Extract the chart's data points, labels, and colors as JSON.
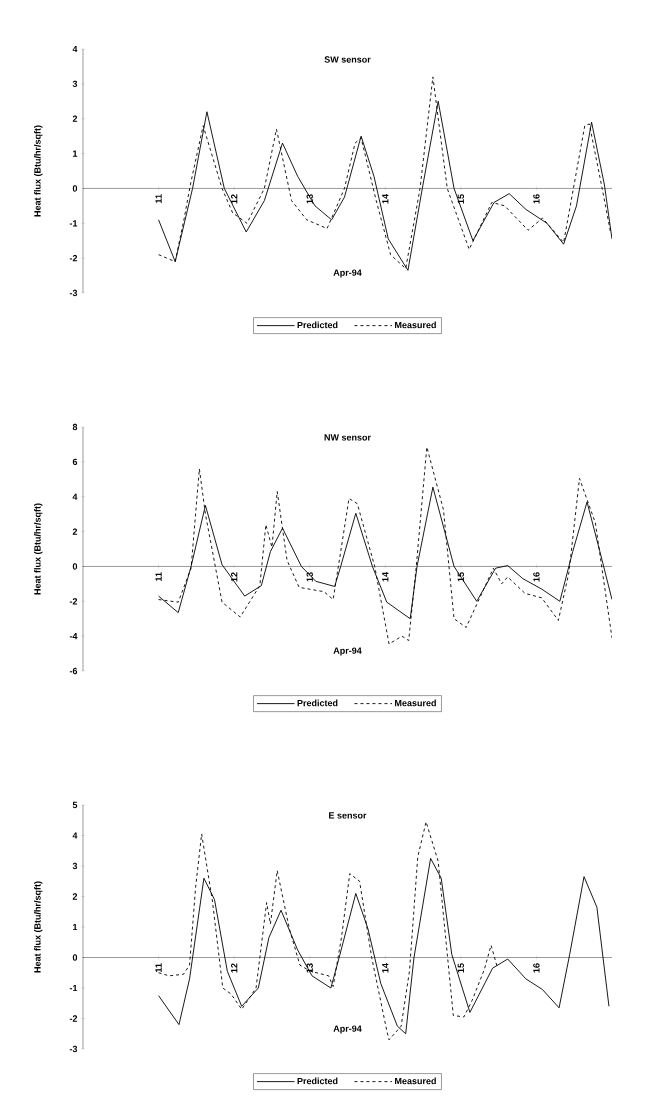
{
  "chart_data": [
    {
      "type": "line",
      "title": "SW sensor",
      "xlabel": "Apr-94",
      "ylabel": "Heat flux (Btu/hr/sqft)",
      "xlim": [
        10,
        17
      ],
      "xticks": [
        11,
        12,
        13,
        14,
        15,
        16
      ],
      "ylim": [
        -3,
        4
      ],
      "yticks": [
        -3,
        -2,
        -1,
        0,
        1,
        2,
        3,
        4
      ],
      "grid": false,
      "legend": "bottom",
      "series": [
        {
          "name": "Predicted",
          "color": "#000000",
          "line_style": "solid",
          "x": [
            11.0,
            11.22,
            11.45,
            11.64,
            11.87,
            12.16,
            12.4,
            12.64,
            12.84,
            13.07,
            13.29,
            13.46,
            13.68,
            13.85,
            14.04,
            14.3,
            14.49,
            14.7,
            14.91,
            15.16,
            15.44,
            15.64,
            15.86,
            16.14,
            16.36,
            16.53,
            16.73,
            16.9,
            17.0
          ],
          "values": [
            -0.9,
            -2.1,
            0,
            2.2,
            0,
            -1.25,
            -0.35,
            1.3,
            0.35,
            -0.5,
            -0.9,
            -0.25,
            1.5,
            0.35,
            -1.45,
            -2.35,
            0,
            2.5,
            0,
            -1.5,
            -0.4,
            -0.15,
            -0.6,
            -1.0,
            -1.6,
            -0.5,
            1.9,
            0.1,
            -1.45
          ]
        },
        {
          "name": "Measured",
          "color": "#000000",
          "line_style": "dashed",
          "x": [
            11.0,
            11.22,
            11.34,
            11.42,
            11.59,
            11.84,
            11.98,
            12.17,
            12.4,
            12.56,
            12.76,
            12.96,
            13.23,
            13.46,
            13.6,
            13.68,
            13.88,
            14.07,
            14.27,
            14.46,
            14.63,
            14.82,
            15.11,
            15.41,
            15.58,
            15.89,
            16.08,
            16.36,
            16.64,
            16.7,
            16.87,
            16.98
          ],
          "values": [
            -1.9,
            -2.1,
            -0.85,
            0.1,
            1.8,
            0,
            -0.7,
            -1.0,
            0,
            1.7,
            -0.35,
            -0.9,
            -1.15,
            0,
            1.3,
            1.45,
            -0.35,
            -1.9,
            -2.3,
            0,
            3.2,
            0,
            -1.75,
            -0.4,
            -0.5,
            -1.2,
            -0.85,
            -1.55,
            1.8,
            1.85,
            0,
            -1.25
          ]
        }
      ]
    },
    {
      "type": "line",
      "title": "NW sensor",
      "xlabel": "Apr-94",
      "ylabel": "Heat flux (Btu/hr/sqft)",
      "xlim": [
        10,
        17
      ],
      "xticks": [
        11,
        12,
        13,
        14,
        15,
        16
      ],
      "ylim": [
        -6,
        8
      ],
      "yticks": [
        -6,
        -4,
        -2,
        0,
        2,
        4,
        6,
        8
      ],
      "grid": false,
      "legend": "bottom",
      "series": [
        {
          "name": "Predicted",
          "color": "#000000",
          "line_style": "solid",
          "x": [
            11.0,
            11.26,
            11.43,
            11.62,
            11.84,
            12.14,
            12.36,
            12.48,
            12.64,
            12.89,
            13.08,
            13.33,
            13.41,
            13.61,
            13.83,
            14.02,
            14.33,
            14.42,
            14.63,
            14.91,
            15.21,
            15.46,
            15.62,
            15.82,
            16.07,
            16.31,
            16.48,
            16.67,
            16.84,
            17.0
          ],
          "values": [
            -1.7,
            -2.65,
            0,
            3.5,
            0.1,
            -1.7,
            -1.1,
            0.85,
            2.2,
            0,
            -0.85,
            -1.15,
            0,
            3.05,
            0,
            -2.05,
            -3.0,
            0,
            4.55,
            0,
            -2.0,
            -0.1,
            0.05,
            -0.7,
            -1.3,
            -2.0,
            0.85,
            3.7,
            0.85,
            -1.9
          ]
        },
        {
          "name": "Measured",
          "color": "#000000",
          "line_style": "dashed",
          "x": [
            11.0,
            11.26,
            11.43,
            11.54,
            11.62,
            11.84,
            12.08,
            12.34,
            12.42,
            12.5,
            12.57,
            12.7,
            12.86,
            13.19,
            13.31,
            13.41,
            13.52,
            13.63,
            13.86,
            14.05,
            14.22,
            14.31,
            14.41,
            14.55,
            14.77,
            14.91,
            15.07,
            15.24,
            15.43,
            15.54,
            15.62,
            15.85,
            16.07,
            16.29,
            16.43,
            16.57,
            16.78,
            17.0
          ],
          "values": [
            -1.9,
            -2.05,
            -0.1,
            5.6,
            3.0,
            -2.05,
            -2.9,
            -1.1,
            2.4,
            1.1,
            4.3,
            0.35,
            -1.2,
            -1.45,
            -1.9,
            0.85,
            3.9,
            3.6,
            0,
            -4.45,
            -4.0,
            -4.25,
            0,
            6.85,
            3.25,
            -3.0,
            -3.5,
            -1.9,
            -0.1,
            -1.0,
            -0.6,
            -1.55,
            -1.8,
            -3.1,
            -0.35,
            5.05,
            2.5,
            -4.1
          ]
        }
      ]
    },
    {
      "type": "line",
      "title": "E sensor",
      "xlabel": "Apr-94",
      "ylabel": "Heat flux (Btu/hr/sqft)",
      "xlim": [
        10,
        17
      ],
      "xticks": [
        11,
        12,
        13,
        14,
        15,
        16
      ],
      "ylim": [
        -3,
        5
      ],
      "yticks": [
        -3,
        -2,
        -1,
        0,
        1,
        2,
        3,
        4,
        5
      ],
      "grid": false,
      "legend": "bottom",
      "series": [
        {
          "name": "Predicted",
          "color": "#000000",
          "line_style": "solid",
          "x": [
            11.0,
            11.27,
            11.41,
            11.6,
            11.74,
            11.91,
            12.1,
            12.32,
            12.46,
            12.62,
            12.84,
            13.03,
            13.28,
            13.39,
            13.61,
            13.77,
            13.94,
            14.16,
            14.27,
            14.38,
            14.6,
            14.74,
            14.88,
            15.12,
            15.42,
            15.62,
            15.86,
            16.08,
            16.3,
            16.44,
            16.63,
            16.8,
            16.96
          ],
          "values": [
            -1.25,
            -2.2,
            -0.7,
            2.6,
            1.9,
            -0.45,
            -1.6,
            -1.0,
            0.65,
            1.55,
            0.25,
            -0.6,
            -1.0,
            0,
            2.1,
            0.95,
            -0.85,
            -2.25,
            -2.5,
            0,
            3.25,
            2.6,
            0.1,
            -1.8,
            -0.35,
            -0.05,
            -0.7,
            -1.05,
            -1.65,
            0.1,
            2.65,
            1.65,
            -1.6
          ]
        },
        {
          "name": "Measured",
          "color": "#000000",
          "line_style": "dashed",
          "x": [
            11.0,
            11.14,
            11.33,
            11.41,
            11.49,
            11.57,
            11.71,
            11.85,
            11.96,
            12.1,
            12.29,
            12.43,
            12.48,
            12.57,
            12.73,
            12.87,
            13.01,
            13.25,
            13.31,
            13.42,
            13.53,
            13.66,
            13.82,
            14.02,
            14.05,
            14.21,
            14.32,
            14.43,
            14.54,
            14.7,
            14.9,
            15.04,
            15.15,
            15.31,
            15.4,
            15.48
          ],
          "values": [
            -0.5,
            -0.6,
            -0.55,
            -0.25,
            2.3,
            4.05,
            1.9,
            -1.0,
            -1.2,
            -1.7,
            -1.0,
            1.8,
            1.1,
            2.85,
            0.95,
            -0.25,
            -0.45,
            -0.6,
            -0.95,
            0.65,
            2.75,
            2.5,
            0,
            -2.4,
            -2.7,
            -2.25,
            -0.45,
            3.3,
            4.45,
            3.15,
            -1.9,
            -1.95,
            -1.4,
            -0.4,
            0.4,
            -0.3
          ]
        }
      ]
    }
  ]
}
